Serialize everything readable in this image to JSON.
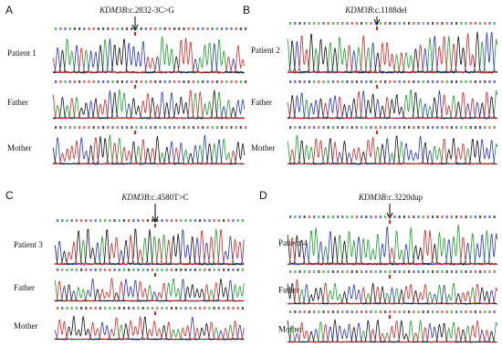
{
  "panels": [
    {
      "label": "A",
      "gene": "KDM3B",
      "variant": ":c.2832-3C>G",
      "rows": [
        "Patient 1",
        "Father",
        "Mother"
      ]
    },
    {
      "label": "B",
      "gene": "KDM3B",
      "variant": ":c.1188del",
      "rows": [
        "Patient 2",
        "Father",
        "Mother"
      ]
    },
    {
      "label": "C",
      "gene": "KDM3B",
      "variant": ":c.4580T>C",
      "rows": [
        "Patient 3",
        "Father",
        "Mother"
      ]
    },
    {
      "label": "D",
      "gene": "KDM3B",
      "variant": ":c.3220dup",
      "rows": [
        "Patient 4",
        "Father",
        "Mother"
      ]
    }
  ]
}
